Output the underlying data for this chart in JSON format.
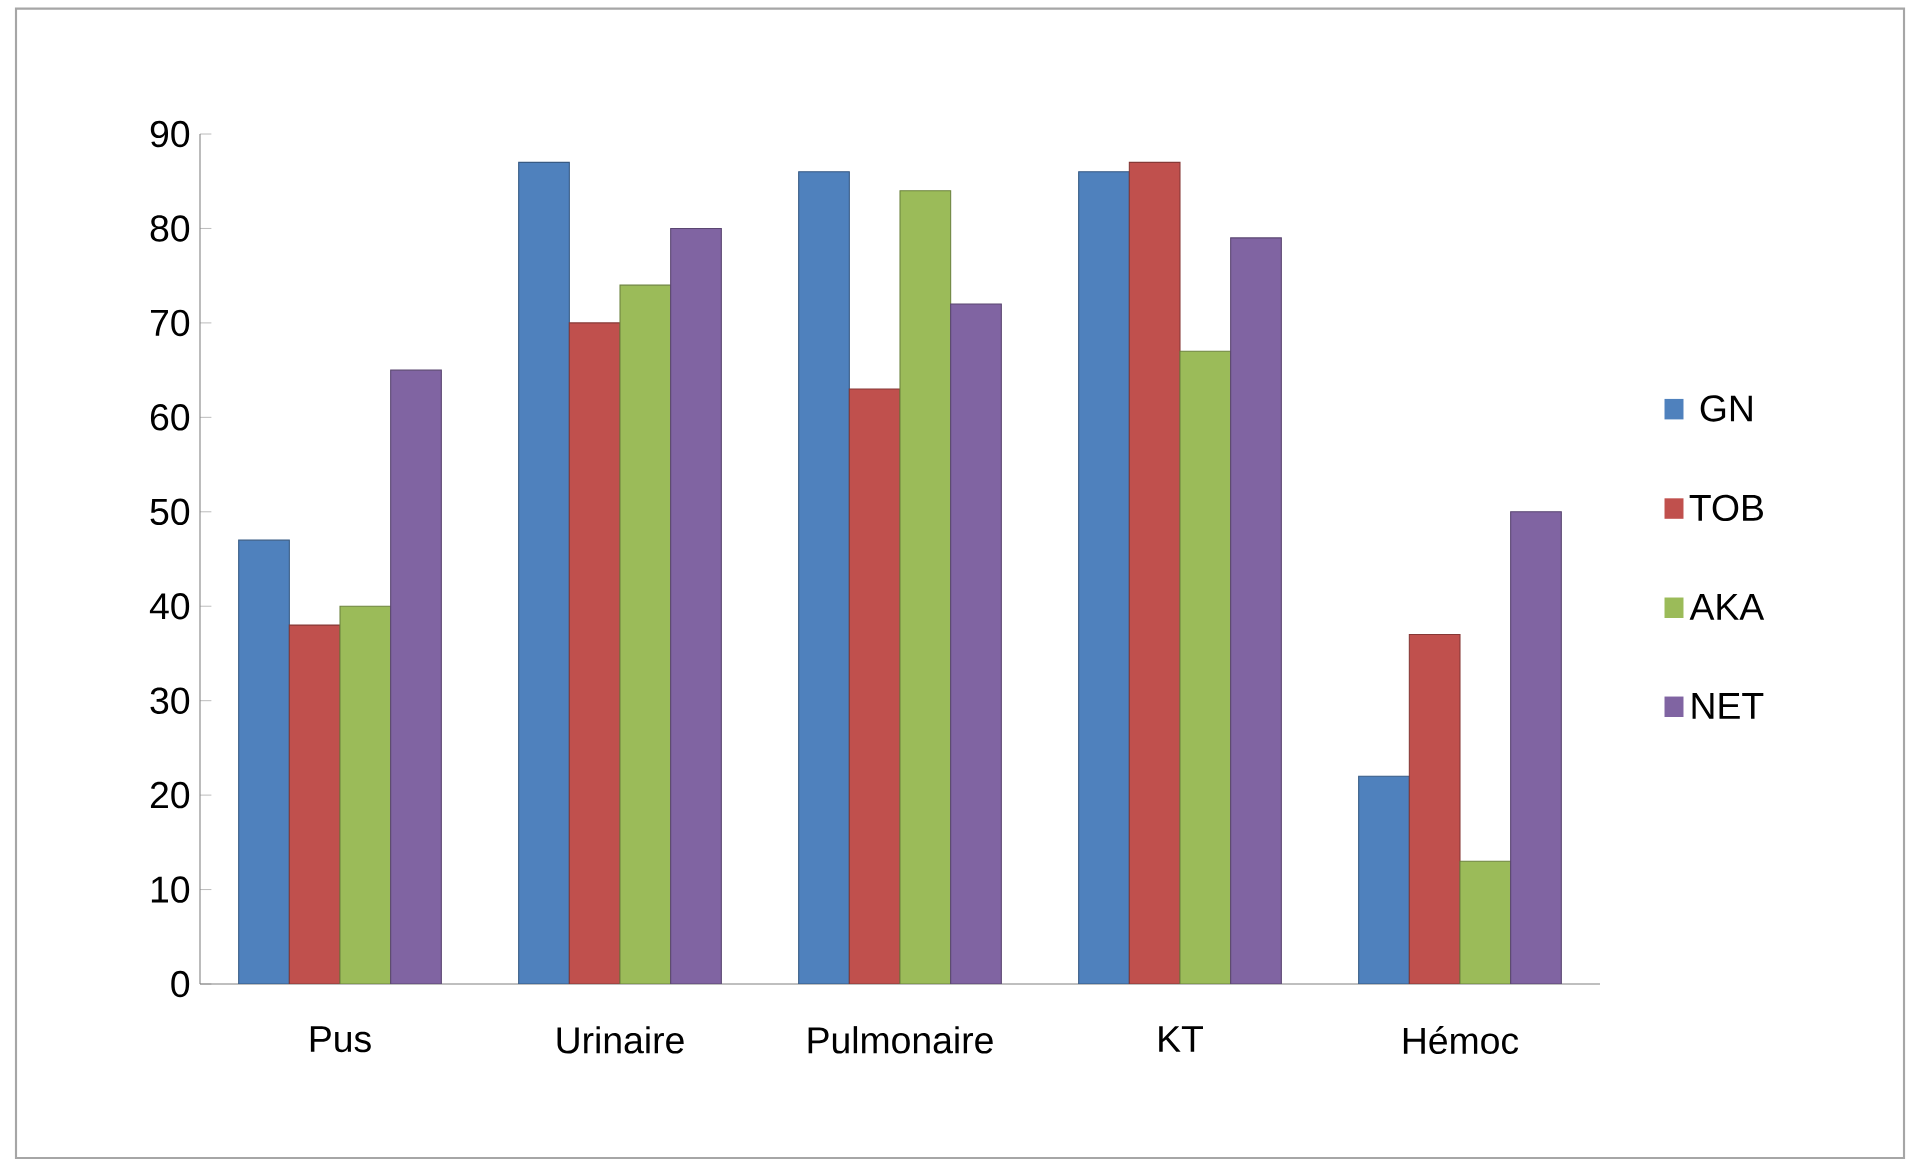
{
  "chart_data": {
    "type": "bar",
    "categories": [
      "Pus",
      "Urinaire",
      "Pulmonaire",
      "KT",
      "Hémoc"
    ],
    "series": [
      {
        "name": "GN",
        "color": "#4f81bd",
        "values": [
          47,
          87,
          86,
          86,
          22
        ]
      },
      {
        "name": "TOB",
        "color": "#c0504d",
        "values": [
          38,
          70,
          63,
          87,
          37
        ]
      },
      {
        "name": "AKA",
        "color": "#9bbb59",
        "values": [
          40,
          74,
          84,
          67,
          13
        ]
      },
      {
        "name": "NET",
        "color": "#8064a2",
        "values": [
          65,
          80,
          72,
          79,
          50
        ]
      }
    ],
    "ylim": [
      0,
      90
    ],
    "yticks": [
      0,
      10,
      20,
      30,
      40,
      50,
      60,
      70,
      80,
      90
    ],
    "grid": false,
    "legend": "right"
  }
}
